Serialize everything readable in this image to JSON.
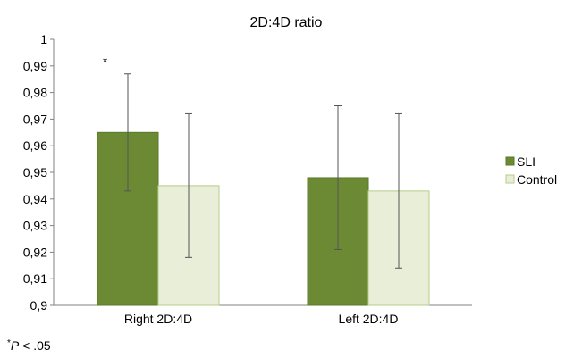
{
  "chart_data": {
    "type": "bar",
    "title": "2D:4D ratio",
    "categories": [
      "Right 2D:4D",
      "Left 2D:4D"
    ],
    "series": [
      {
        "name": "SLI",
        "color": "#6b8a33",
        "stroke": "#5a7a2a",
        "values": [
          0.965,
          0.948
        ],
        "err_low": [
          0.943,
          0.921
        ],
        "err_high": [
          0.987,
          0.975
        ]
      },
      {
        "name": "Control",
        "color": "#e8eed8",
        "stroke": "#b7cc8a",
        "values": [
          0.945,
          0.943
        ],
        "err_low": [
          0.918,
          0.914
        ],
        "err_high": [
          0.972,
          0.972
        ]
      }
    ],
    "ylim": [
      0.9,
      1.0
    ],
    "yticks": [
      "0,9",
      "0,91",
      "0,92",
      "0,93",
      "0,94",
      "0,95",
      "0,96",
      "0,97",
      "0,98",
      "0,99",
      "1"
    ],
    "grid": false,
    "legend_position": "right",
    "annotations": [
      {
        "text": "*",
        "category": "Right 2D:4D",
        "series": "SLI"
      }
    ],
    "footnote": {
      "star": "*",
      "p": "P",
      "rest": " < .05"
    }
  }
}
